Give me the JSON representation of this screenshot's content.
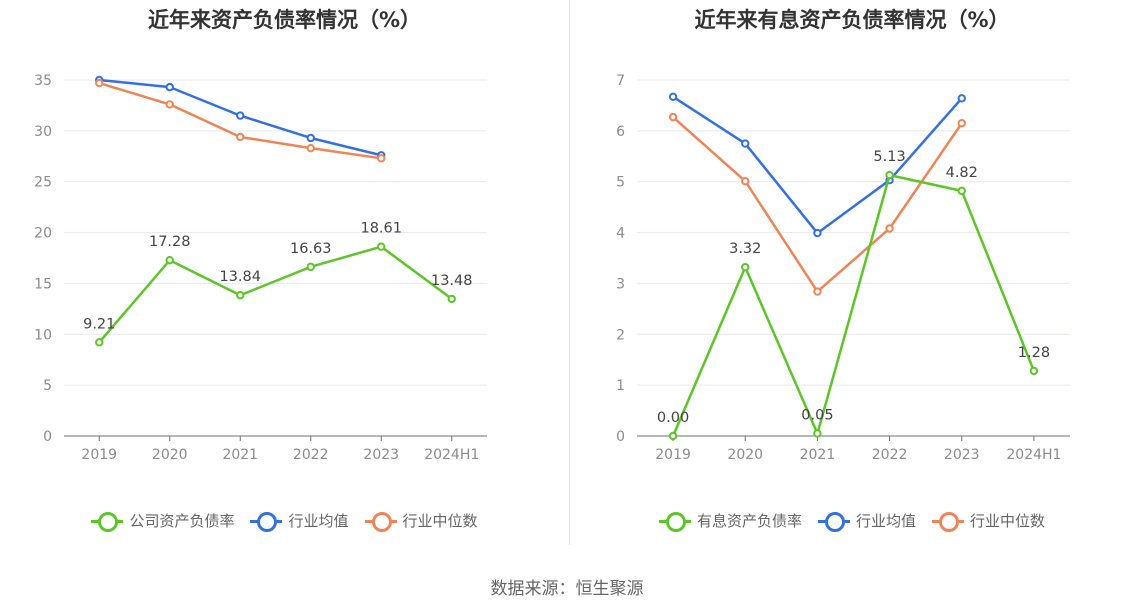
{
  "source": "数据来源：恒生聚源",
  "colors": {
    "company": "#5cc628",
    "avg": "#3370e2",
    "median": "#f18456"
  },
  "chart_data": [
    {
      "type": "line",
      "title": "近年来资产负债率情况（%）",
      "categories": [
        "2019",
        "2020",
        "2021",
        "2022",
        "2023",
        "2024H1"
      ],
      "ylim": [
        0,
        35
      ],
      "yticks": [
        0,
        5,
        10,
        15,
        20,
        25,
        30,
        35
      ],
      "series": [
        {
          "name": "公司资产负债率",
          "role": "company",
          "values": [
            9.21,
            17.28,
            13.84,
            16.63,
            18.61,
            13.48
          ],
          "labels": [
            "9.21",
            "17.28",
            "13.84",
            "16.63",
            "18.61",
            "13.48"
          ]
        },
        {
          "name": "行业均值",
          "role": "avg",
          "values": [
            35.0,
            34.3,
            31.5,
            29.3,
            27.6,
            null
          ]
        },
        {
          "name": "行业中位数",
          "role": "median",
          "values": [
            34.7,
            32.6,
            29.4,
            28.3,
            27.3,
            null
          ]
        }
      ]
    },
    {
      "type": "line",
      "title": "近年来有息资产负债率情况（%）",
      "categories": [
        "2019",
        "2020",
        "2021",
        "2022",
        "2023",
        "2024H1"
      ],
      "ylim": [
        0,
        7
      ],
      "yticks": [
        0,
        1,
        2,
        3,
        4,
        5,
        6,
        7
      ],
      "series": [
        {
          "name": "有息资产负债率",
          "role": "company",
          "values": [
            0.0,
            3.32,
            0.05,
            5.13,
            4.82,
            1.28
          ],
          "labels": [
            "0.00",
            "3.32",
            "0.05",
            "5.13",
            "4.82",
            "1.28"
          ]
        },
        {
          "name": "行业均值",
          "role": "avg",
          "values": [
            6.67,
            5.75,
            3.99,
            5.03,
            6.64,
            null
          ]
        },
        {
          "name": "行业中位数",
          "role": "median",
          "values": [
            6.27,
            5.01,
            2.84,
            4.08,
            6.15,
            null
          ]
        }
      ]
    }
  ]
}
